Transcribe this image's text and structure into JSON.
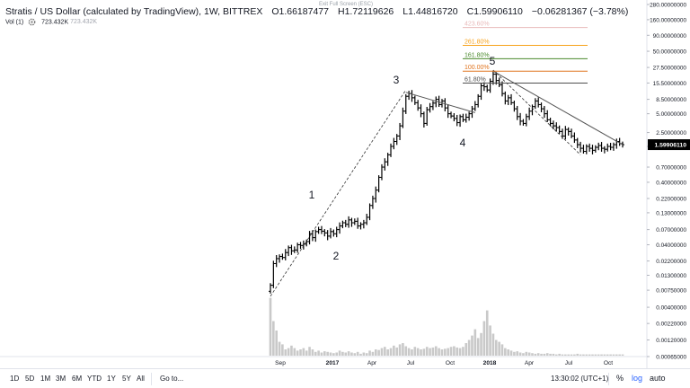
{
  "legend": {
    "symbol": "Stratis / US Dollar (calculated by TradingView), 1W, BITTREX",
    "o_label": "O",
    "o_value": "1.66187477",
    "h_label": "H",
    "h_value": "1.72119626",
    "l_label": "L",
    "l_value": "1.44816720",
    "c_label": "C",
    "c_value": "1.59906110",
    "change": "−0.06281367 (−3.78%)"
  },
  "volume_legend": {
    "label": "Vol (1)",
    "value": "723.432K",
    "value2": "723.432K"
  },
  "exit_fullscreen": "Exit Full Screen (ESC)",
  "toolbar": {
    "timeframes": [
      "1D",
      "5D",
      "1M",
      "3M",
      "6M",
      "YTD",
      "1Y",
      "5Y",
      "All"
    ],
    "goto": "Go to...",
    "clock": "13:30:02 (UTC+1)",
    "percent": "%",
    "log": "log",
    "auto": "auto"
  },
  "colors": {
    "candles": "#000000",
    "volume": "#c9c9c9",
    "fib_261": "#f7a21b",
    "fib_161": "#4a8a2c",
    "fib_100": "#e0731d",
    "fib_61": "#4f4f4f",
    "fib_423": "#e8b9b9",
    "current_price_bg": "#000000"
  },
  "chart_data": {
    "type": "ohlc",
    "title": "Stratis / US Dollar (calculated by TradingView), 1W, BITTREX",
    "y_scale": "log",
    "grid": false,
    "price_axis_ticks": [
      "280.00000000",
      "160.00000000",
      "90.00000000",
      "50.00000000",
      "27.50000000",
      "15.50000000",
      "8.50000000",
      "5.00000000",
      "2.50000000",
      "1.50000000",
      "0.70000000",
      "0.40000000",
      "0.22000000",
      "0.13000000",
      "0.07000000",
      "0.04000000",
      "0.02200000",
      "0.01300000",
      "0.00750000",
      "0.00400000",
      "0.00220000",
      "0.00120000",
      "0.00065000"
    ],
    "current_price": "1.59906110",
    "x_labels": [
      "Sep",
      "2017",
      "Apr",
      "Jul",
      "Oct",
      "2018",
      "Apr",
      "Jul",
      "Oct"
    ],
    "wave_labels": [
      "1",
      "2",
      "3",
      "4",
      "5"
    ],
    "fib_levels": [
      "423.60%",
      "261.80%",
      "161.80%",
      "100.00%",
      "61.80%"
    ],
    "weekly_closes": [
      0.009,
      0.02,
      0.024,
      0.026,
      0.025,
      0.03,
      0.036,
      0.032,
      0.033,
      0.04,
      0.039,
      0.041,
      0.045,
      0.06,
      0.052,
      0.065,
      0.07,
      0.066,
      0.062,
      0.055,
      0.065,
      0.06,
      0.07,
      0.08,
      0.09,
      0.085,
      0.1,
      0.09,
      0.095,
      0.08,
      0.085,
      0.09,
      0.11,
      0.17,
      0.22,
      0.3,
      0.48,
      0.7,
      0.85,
      1.1,
      1.5,
      1.8,
      2.2,
      3.2,
      5.5,
      9.5,
      10.5,
      9.0,
      7.5,
      6.2,
      5.0,
      3.5,
      5.8,
      6.5,
      7.4,
      8.5,
      7.0,
      8.0,
      6.2,
      5.0,
      4.6,
      4.2,
      3.6,
      4.5,
      4.0,
      4.4,
      5.0,
      6.0,
      7.0,
      9.5,
      14.0,
      13.5,
      12.0,
      16.5,
      21.5,
      17.0,
      14.5,
      10.5,
      8.0,
      9.0,
      7.5,
      6.0,
      4.5,
      3.8,
      3.5,
      4.5,
      5.5,
      6.5,
      8.0,
      7.0,
      6.0,
      5.0,
      4.0,
      3.5,
      3.2,
      3.0,
      2.6,
      2.2,
      2.8,
      2.6,
      2.2,
      1.9,
      1.6,
      1.4,
      1.25,
      1.5,
      1.4,
      1.3,
      1.45,
      1.55,
      1.4,
      1.35,
      1.5,
      1.45,
      1.6,
      1.8,
      1.66,
      1.6
    ],
    "weekly_volume_relative": [
      0.92,
      0.55,
      0.4,
      0.22,
      0.18,
      0.1,
      0.12,
      0.16,
      0.12,
      0.08,
      0.1,
      0.12,
      0.08,
      0.14,
      0.1,
      0.06,
      0.08,
      0.05,
      0.07,
      0.06,
      0.05,
      0.04,
      0.05,
      0.08,
      0.06,
      0.05,
      0.07,
      0.05,
      0.04,
      0.06,
      0.03,
      0.05,
      0.04,
      0.08,
      0.06,
      0.1,
      0.09,
      0.12,
      0.14,
      0.1,
      0.12,
      0.16,
      0.13,
      0.18,
      0.2,
      0.15,
      0.12,
      0.1,
      0.14,
      0.12,
      0.1,
      0.11,
      0.14,
      0.12,
      0.13,
      0.15,
      0.12,
      0.1,
      0.11,
      0.12,
      0.14,
      0.15,
      0.13,
      0.12,
      0.14,
      0.2,
      0.25,
      0.32,
      0.42,
      0.28,
      0.36,
      0.55,
      0.72,
      0.48,
      0.35,
      0.25,
      0.22,
      0.18,
      0.12,
      0.1,
      0.08,
      0.06,
      0.07,
      0.05,
      0.04,
      0.06,
      0.05,
      0.04,
      0.03,
      0.04,
      0.03,
      0.03,
      0.04,
      0.03,
      0.03,
      0.02,
      0.03,
      0.02,
      0.02,
      0.02,
      0.02,
      0.02,
      0.03,
      0.02,
      0.02,
      0.02,
      0.02,
      0.02,
      0.02,
      0.02,
      0.02,
      0.02,
      0.02,
      0.02,
      0.02,
      0.02,
      0.02,
      0.02
    ]
  }
}
